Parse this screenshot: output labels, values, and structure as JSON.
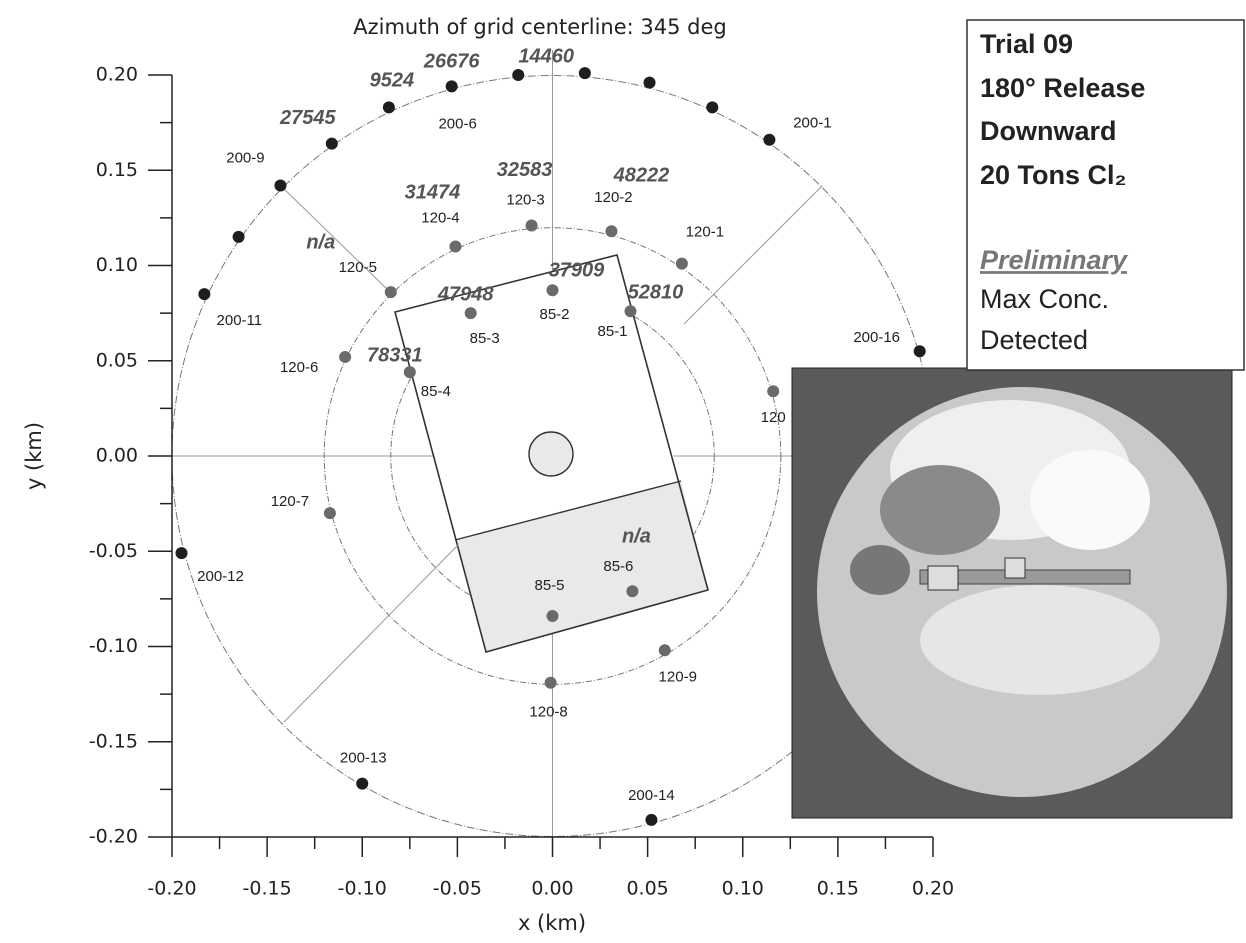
{
  "chart_data": {
    "type": "scatter",
    "title": "Azimuth of grid centerline: 345 deg",
    "x_label": "x (km)",
    "y_label": "y (km)",
    "xlim": [
      -0.2,
      0.2
    ],
    "ylim": [
      -0.2,
      0.2
    ],
    "xticks": [
      {
        "value": -0.2,
        "label": "-0.20"
      },
      {
        "value": -0.15,
        "label": "-0.15"
      },
      {
        "value": -0.1,
        "label": "-0.10"
      },
      {
        "value": -0.05,
        "label": "-0.05"
      },
      {
        "value": 0,
        "label": "0.00"
      },
      {
        "value": 0.05,
        "label": "0.05"
      },
      {
        "value": 0.1,
        "label": "0.10"
      },
      {
        "value": 0.15,
        "label": "0.15"
      },
      {
        "value": 0.2,
        "label": "0.20"
      }
    ],
    "yticks": [
      {
        "value": -0.2,
        "label": "-0.20"
      },
      {
        "value": -0.15,
        "label": "-0.15"
      },
      {
        "value": -0.1,
        "label": "-0.10"
      },
      {
        "value": -0.05,
        "label": "-0.05"
      },
      {
        "value": 0,
        "label": "0.00"
      },
      {
        "value": 0.05,
        "label": "0.05"
      },
      {
        "value": 0.1,
        "label": "0.10"
      },
      {
        "value": 0.15,
        "label": "0.15"
      },
      {
        "value": 0.2,
        "label": "0.20"
      }
    ],
    "ring_radii": [
      0.2,
      0.12,
      0.085
    ],
    "series": [
      {
        "color": "#1e1e1e",
        "points": [
          {
            "x": -0.018,
            "y": 0.2,
            "max_conc": 14460
          },
          {
            "x": 0.017,
            "y": 0.201
          },
          {
            "x": 0.051,
            "y": 0.196
          },
          {
            "x": 0.084,
            "y": 0.183
          },
          {
            "x": 0.114,
            "y": 0.166,
            "id": "200-1"
          },
          {
            "x": -0.053,
            "y": 0.194,
            "id": "200-6",
            "max_conc": 26676
          },
          {
            "x": -0.086,
            "y": 0.183,
            "max_conc": 9524
          },
          {
            "x": -0.116,
            "y": 0.164,
            "max_conc": 27545
          },
          {
            "x": -0.143,
            "y": 0.142,
            "id": "200-9"
          },
          {
            "x": -0.165,
            "y": 0.115
          },
          {
            "x": -0.183,
            "y": 0.085,
            "id": "200-11"
          },
          {
            "x": 0.193,
            "y": 0.055,
            "id": "200-16"
          },
          {
            "x": -0.195,
            "y": -0.051,
            "id": "200-12"
          },
          {
            "x": -0.1,
            "y": -0.172,
            "id": "200-13"
          },
          {
            "x": 0.052,
            "y": -0.191,
            "id": "200-14"
          }
        ]
      },
      {
        "color": "#6a6a6a",
        "points": [
          {
            "x": -0.011,
            "y": 0.121,
            "id": "120-3",
            "max_conc": 32583
          },
          {
            "x": 0.031,
            "y": 0.118,
            "id": "120-2",
            "max_conc": 48222
          },
          {
            "x": 0.068,
            "y": 0.101,
            "id": "120-1"
          },
          {
            "x": -0.051,
            "y": 0.11,
            "id": "120-4",
            "max_conc": 31474
          },
          {
            "x": -0.085,
            "y": 0.086,
            "id": "120-5",
            "max_conc": "n/a"
          },
          {
            "x": -0.109,
            "y": 0.052,
            "id": "120-6"
          },
          {
            "x": -0.117,
            "y": -0.03,
            "id": "120-7"
          },
          {
            "x": -0.001,
            "y": -0.119,
            "id": "120-8"
          },
          {
            "x": 0.059,
            "y": -0.102,
            "id": "120-9"
          },
          {
            "x": 0.116,
            "y": 0.034,
            "id": "120"
          }
        ]
      },
      {
        "color": "#6a6a6a",
        "points": [
          {
            "x": 0.0,
            "y": 0.087,
            "id": "85-2",
            "max_conc": 37909
          },
          {
            "x": 0.041,
            "y": 0.076,
            "id": "85-1",
            "max_conc": 52810
          },
          {
            "x": -0.043,
            "y": 0.075,
            "id": "85-3",
            "max_conc": 47948
          },
          {
            "x": -0.075,
            "y": 0.044,
            "id": "85-4",
            "max_conc": 78331
          },
          {
            "x": 0.0,
            "y": -0.084,
            "id": "85-5"
          },
          {
            "x": 0.042,
            "y": -0.071,
            "id": "85-6",
            "max_conc": "n/a"
          }
        ]
      }
    ]
  },
  "info_box": {
    "lines": [
      "Trial 09",
      "180° Release",
      "Downward",
      "20 Tons Cl₂"
    ],
    "status": "Preliminary",
    "note": [
      "Max Conc.",
      "Detected"
    ]
  }
}
